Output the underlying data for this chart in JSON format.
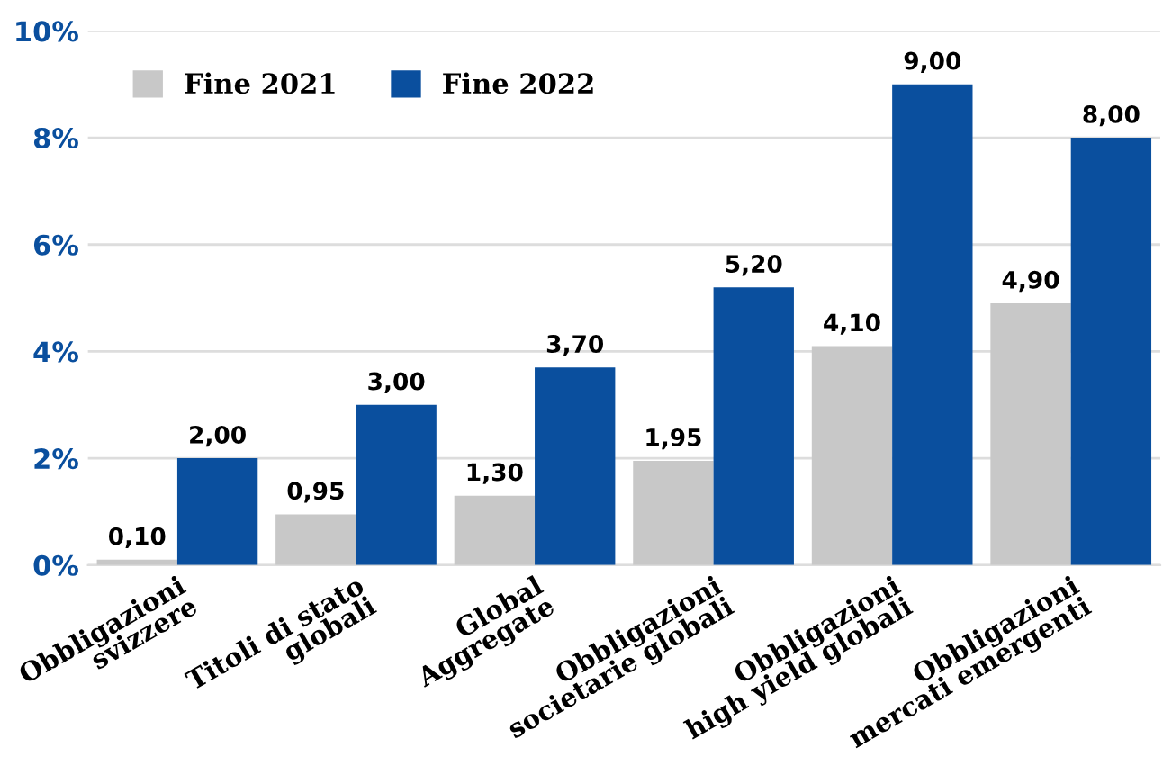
{
  "chart_data": {
    "type": "bar",
    "categories": [
      "Obbligazioni\nsvizzere",
      "Titoli di stato\nglobali",
      "Global\nAggregate",
      "Obbligazioni\nsocietarie globali",
      "Obbligazioni\nhigh yield globali",
      "Obbligazioni\nmercati emergenti"
    ],
    "series": [
      {
        "name": "Fine 2021",
        "color": "#c8c8c8",
        "values": [
          0.1,
          0.95,
          1.3,
          1.95,
          4.1,
          4.9
        ],
        "value_labels": [
          "0,10",
          "0,95",
          "1,30",
          "1,95",
          "4,10",
          "4,90"
        ]
      },
      {
        "name": "Fine 2022",
        "color": "#0a4f9e",
        "values": [
          2.0,
          3.0,
          3.7,
          5.2,
          9.0,
          8.0
        ],
        "value_labels": [
          "2,00",
          "3,00",
          "3,70",
          "5,20",
          "9,00",
          "8,00"
        ]
      }
    ],
    "ylim": [
      0,
      10
    ],
    "yticks": [
      {
        "value": 0,
        "label": "0%"
      },
      {
        "value": 2,
        "label": "2%"
      },
      {
        "value": 4,
        "label": "4%"
      },
      {
        "value": 6,
        "label": "6%"
      },
      {
        "value": 8,
        "label": "8%"
      },
      {
        "value": 10,
        "label": "10%"
      }
    ],
    "grid": "y",
    "legend": "top left"
  }
}
